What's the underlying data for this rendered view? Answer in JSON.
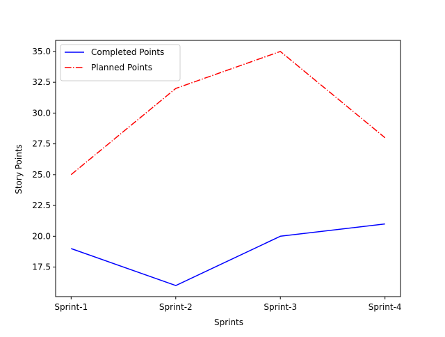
{
  "chart_data": {
    "type": "line",
    "title": "",
    "xlabel": "Sprints",
    "ylabel": "Story Points",
    "categories": [
      "Sprint-1",
      "Sprint-2",
      "Sprint-3",
      "Sprint-4"
    ],
    "ylim": [
      15.1,
      35.9
    ],
    "yticks": [
      "17.5",
      "20.0",
      "22.5",
      "25.0",
      "27.5",
      "30.0",
      "32.5",
      "35.0"
    ],
    "grid": false,
    "legend_position": "top-left",
    "series": [
      {
        "name": "Completed Points",
        "values": [
          19,
          16,
          20,
          21
        ],
        "color": "#0000ff",
        "line_style": "solid"
      },
      {
        "name": "Planned Points",
        "values": [
          25,
          32,
          35,
          28
        ],
        "color": "#ff0000",
        "line_style": "dashdot"
      }
    ]
  }
}
